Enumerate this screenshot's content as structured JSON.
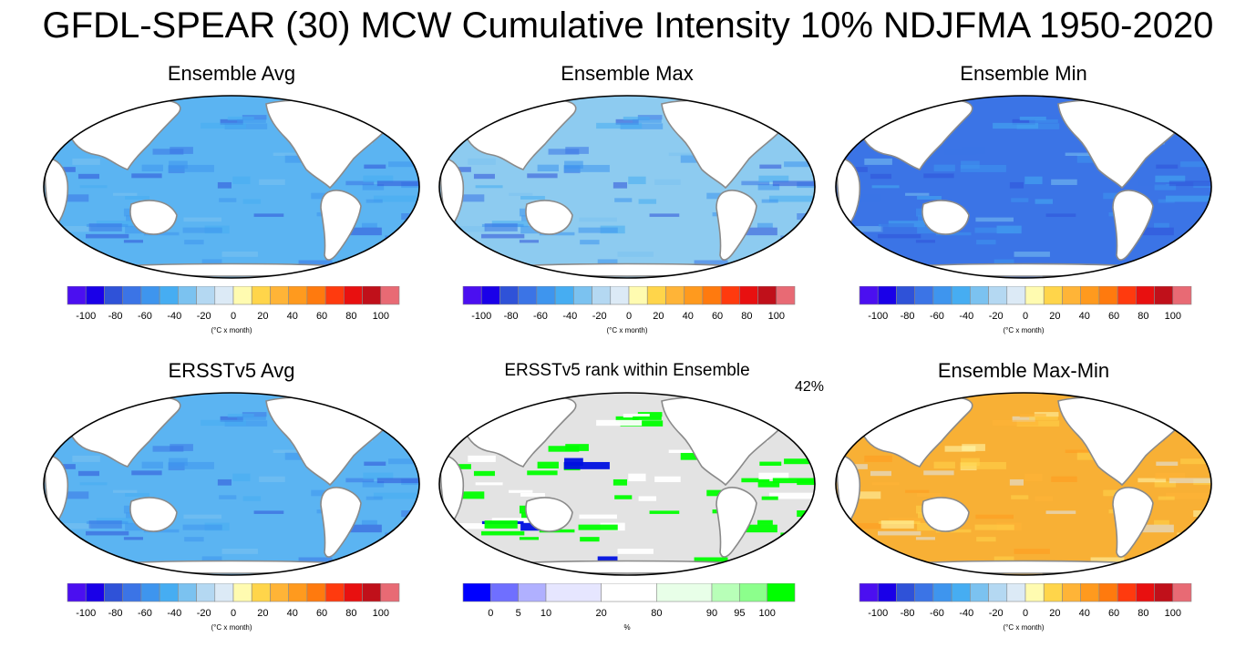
{
  "title": "GFDL-SPEAR (30) MCW Cumulative Intensity 10% NDJFMA 1950-2020",
  "colors": {
    "ocean_fill": [
      "#5bb4f2",
      "#8dcbf0",
      "#3b74e6",
      "#5bb4f2",
      "#99c9ee",
      "#f8b035"
    ],
    "rank_background": "#e3e3e3",
    "rank_green": "#00ff00",
    "rank_blue": "#0010e0",
    "land": "#ffffff",
    "coast": "#8a8a8a"
  },
  "intensity_palette": [
    "#4b0ff0",
    "#1a00e8",
    "#2f52d8",
    "#3b74e6",
    "#3e95ee",
    "#46adf2",
    "#7bc2f0",
    "#b4d8f2",
    "#dceaf6",
    "#fffbb0",
    "#ffd54a",
    "#ffb437",
    "#ff9a1e",
    "#ff7a0e",
    "#ff3a0e",
    "#e81010",
    "#c0101a",
    "#e86a74"
  ],
  "intensity_ticks": [
    "-100",
    "-80",
    "-60",
    "-40",
    "-20",
    "0",
    "20",
    "40",
    "60",
    "80",
    "100"
  ],
  "rank_palette": [
    "#0000ff",
    "#6f6fff",
    "#b0b0ff",
    "#e6e6ff",
    "#ffffff",
    "#e8ffe8",
    "#b8ffb8",
    "#8cff8c",
    "#00ff00"
  ],
  "rank_ticks": [
    "0",
    "5",
    "10",
    "20",
    "80",
    "90",
    "95",
    "100"
  ],
  "units": "(°C x month)",
  "rank_units": "%",
  "panels": [
    {
      "title": "Ensemble Avg",
      "fill_index": 0
    },
    {
      "title": "Ensemble Max",
      "fill_index": 1
    },
    {
      "title": "Ensemble Min",
      "fill_index": 2
    },
    {
      "title": "ERSSTv5 Avg",
      "fill_index": 3
    },
    {
      "title": "ERSSTv5 rank within Ensemble",
      "annotation": "42%"
    },
    {
      "title": "Ensemble Max-Min",
      "fill_index": 5
    }
  ]
}
